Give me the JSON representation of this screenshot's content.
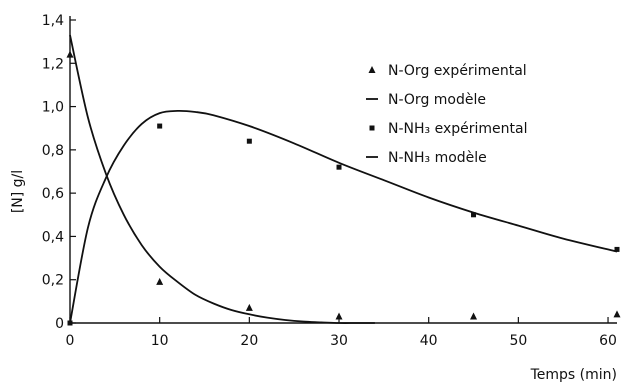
{
  "chart_data": {
    "type": "scatter",
    "xlabel": "Temps (min)",
    "ylabel": "[N] g/l",
    "xlim": [
      0,
      61
    ],
    "ylim": [
      0,
      1.4
    ],
    "x_ticks": [
      0,
      10,
      20,
      30,
      40,
      50,
      60
    ],
    "y_ticks": [
      {
        "value": 0,
        "label": "0"
      },
      {
        "value": 0.2,
        "label": "0,2"
      },
      {
        "value": 0.4,
        "label": "0,4"
      },
      {
        "value": 0.6,
        "label": "0,6"
      },
      {
        "value": 0.8,
        "label": "0,8"
      },
      {
        "value": 1.0,
        "label": "1,0"
      },
      {
        "value": 1.2,
        "label": "1,2"
      },
      {
        "value": 1.4,
        "label": "1,4"
      }
    ],
    "grid": false,
    "legend_position": "top-right",
    "series": [
      {
        "name": "N-Org expérimental",
        "kind": "points",
        "marker": "triangle",
        "x": [
          0,
          10,
          20,
          30,
          45,
          61
        ],
        "y": [
          1.24,
          0.19,
          0.07,
          0.03,
          0.03,
          0.04
        ]
      },
      {
        "name": "N-Org modèle",
        "kind": "line",
        "x": [
          0,
          2,
          4,
          6,
          8,
          10,
          12,
          14,
          16,
          18,
          20,
          22,
          24,
          26,
          28,
          30,
          32,
          34
        ],
        "y": [
          1.33,
          0.95,
          0.69,
          0.5,
          0.36,
          0.26,
          0.19,
          0.13,
          0.09,
          0.06,
          0.04,
          0.025,
          0.014,
          0.007,
          0.003,
          0.0,
          0.0,
          0.0
        ]
      },
      {
        "name": "N-NH3 expérimental",
        "kind": "points",
        "marker": "square",
        "x": [
          0,
          10,
          20,
          30,
          45,
          61
        ],
        "y": [
          0.0,
          0.91,
          0.84,
          0.72,
          0.5,
          0.34
        ]
      },
      {
        "name": "N-NH3 modèle",
        "kind": "line",
        "x": [
          0,
          2,
          4,
          6,
          8,
          10,
          12,
          14,
          16,
          20,
          25,
          30,
          35,
          40,
          45,
          50,
          55,
          61
        ],
        "y": [
          0.0,
          0.44,
          0.67,
          0.82,
          0.92,
          0.97,
          0.98,
          0.975,
          0.96,
          0.91,
          0.83,
          0.74,
          0.66,
          0.58,
          0.51,
          0.45,
          0.39,
          0.33
        ]
      }
    ]
  },
  "legend": [
    {
      "symbol": "triangle",
      "text": "N-Org expérimental"
    },
    {
      "symbol": "line",
      "text": "N-Org modèle"
    },
    {
      "symbol": "square",
      "text": "N-NH₃ expérimental"
    },
    {
      "symbol": "line",
      "text": "N-NH₃ modèle"
    }
  ],
  "colors": {
    "ink": "#111111",
    "background": "#ffffff"
  }
}
